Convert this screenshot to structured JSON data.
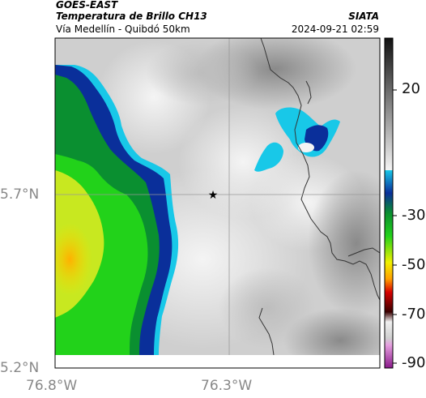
{
  "header": {
    "satellite": "GOES-EAST",
    "product": "Temperatura de Brillo CH13",
    "route": "Vía Medellín - Quibdó 50km",
    "organization": "SIATA",
    "timestamp": "2024-09-21 02:59"
  },
  "map": {
    "lat_ticks": [
      "5.7°N",
      "5.2°N"
    ],
    "lon_ticks": [
      "76.8°W",
      "76.3°W"
    ],
    "marker": "star-marker"
  },
  "colorbar": {
    "tick_labels": [
      "20",
      "-30",
      "-50",
      "-70",
      "-90"
    ],
    "colors": {
      "gray_dark": "#1a1a1a",
      "gray_light": "#f2f2f2",
      "cyan": "#18c8e8",
      "blue": "#0a2f9a",
      "green": "#22d21a",
      "yellow": "#f0f000",
      "orange": "#ffa000",
      "red": "#d80000",
      "dark_red": "#3a0000",
      "magenta": "#b02aa8"
    }
  }
}
